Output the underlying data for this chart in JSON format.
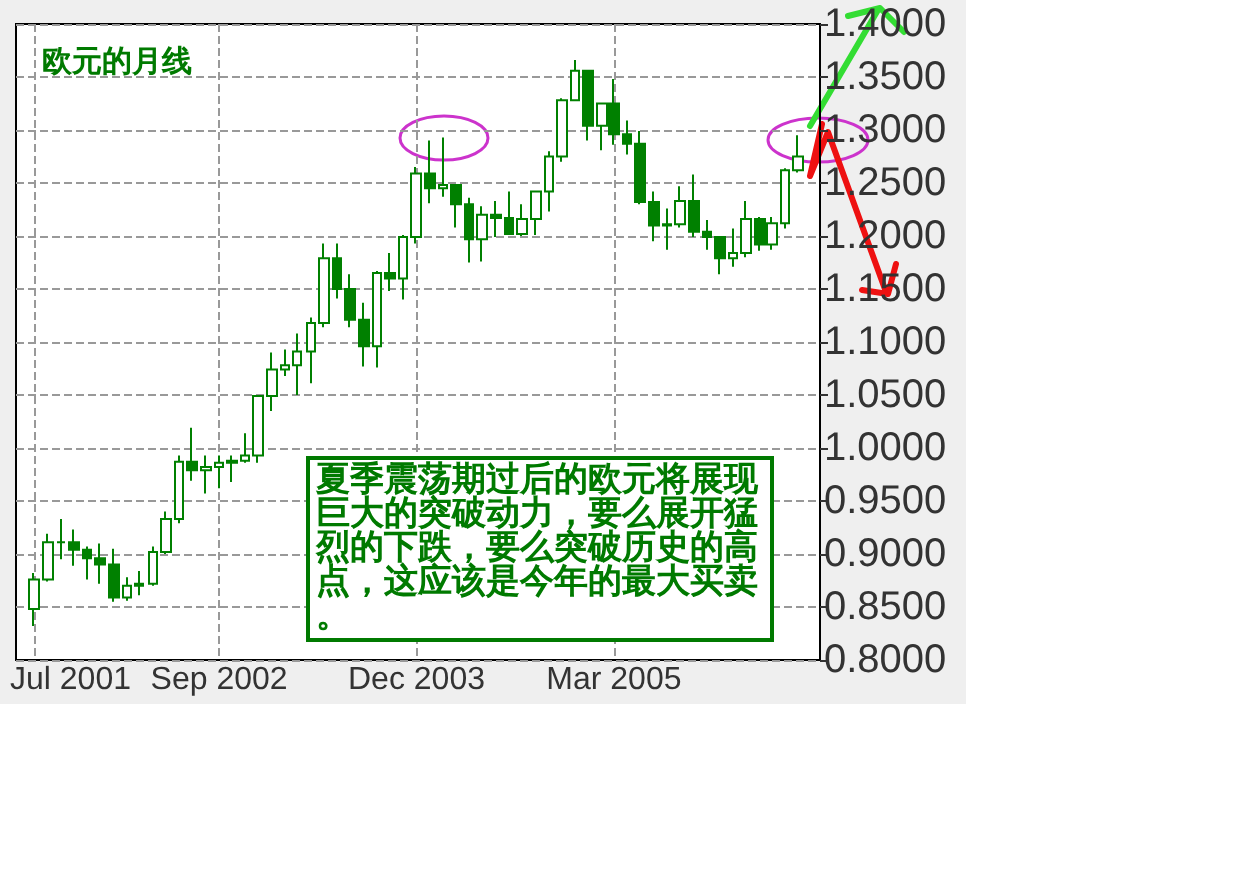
{
  "chart_data": {
    "type": "candlestick",
    "title": "欧元的月线",
    "annotations": [
      "夏季震荡期过后的欧元将展现巨大的突破动力，要么展开猛烈的下跌，要么突破历史的高点，这应该是今年的最大买卖。"
    ],
    "x": [
      "2001-07",
      "2001-08",
      "2001-09",
      "2001-10",
      "2001-11",
      "2001-12",
      "2002-01",
      "2002-02",
      "2002-03",
      "2002-04",
      "2002-05",
      "2002-06",
      "2002-07",
      "2002-08",
      "2002-09",
      "2002-10",
      "2002-11",
      "2002-12",
      "2003-01",
      "2003-02",
      "2003-03",
      "2003-04",
      "2003-05",
      "2003-06",
      "2003-07",
      "2003-08",
      "2003-09",
      "2003-10",
      "2003-11",
      "2003-12",
      "2004-01",
      "2004-02",
      "2004-03",
      "2004-04",
      "2004-05",
      "2004-06",
      "2004-07",
      "2004-08",
      "2004-09",
      "2004-10",
      "2004-11",
      "2004-12",
      "2005-01",
      "2005-02",
      "2005-03",
      "2005-04",
      "2005-05",
      "2005-06",
      "2005-07",
      "2005-08",
      "2005-09",
      "2005-10",
      "2005-11",
      "2005-12",
      "2006-01",
      "2006-02",
      "2006-03",
      "2006-04",
      "2006-05"
    ],
    "ohlc": [
      [
        0.848,
        0.882,
        0.832,
        0.876
      ],
      [
        0.876,
        0.919,
        0.874,
        0.911
      ],
      [
        0.911,
        0.933,
        0.895,
        0.911
      ],
      [
        0.911,
        0.923,
        0.889,
        0.904
      ],
      [
        0.904,
        0.907,
        0.876,
        0.896
      ],
      [
        0.896,
        0.91,
        0.872,
        0.89
      ],
      [
        0.89,
        0.905,
        0.855,
        0.859
      ],
      [
        0.859,
        0.878,
        0.856,
        0.87
      ],
      [
        0.87,
        0.884,
        0.861,
        0.872
      ],
      [
        0.872,
        0.907,
        0.87,
        0.902
      ],
      [
        0.902,
        0.94,
        0.9,
        0.933
      ],
      [
        0.933,
        0.993,
        0.929,
        0.987
      ],
      [
        0.987,
        1.019,
        0.969,
        0.979
      ],
      [
        0.979,
        0.993,
        0.957,
        0.982
      ],
      [
        0.982,
        0.993,
        0.962,
        0.986
      ],
      [
        0.986,
        0.993,
        0.968,
        0.988
      ],
      [
        0.988,
        1.014,
        0.986,
        0.993
      ],
      [
        0.993,
        1.05,
        0.986,
        1.049
      ],
      [
        1.049,
        1.09,
        1.035,
        1.074
      ],
      [
        1.074,
        1.093,
        1.068,
        1.078
      ],
      [
        1.078,
        1.108,
        1.05,
        1.091
      ],
      [
        1.091,
        1.123,
        1.061,
        1.118
      ],
      [
        1.118,
        1.193,
        1.114,
        1.179
      ],
      [
        1.179,
        1.193,
        1.141,
        1.15
      ],
      [
        1.15,
        1.164,
        1.114,
        1.121
      ],
      [
        1.121,
        1.137,
        1.077,
        1.096
      ],
      [
        1.096,
        1.167,
        1.076,
        1.165
      ],
      [
        1.165,
        1.184,
        1.148,
        1.16
      ],
      [
        1.16,
        1.201,
        1.14,
        1.199
      ],
      [
        1.199,
        1.265,
        1.193,
        1.259
      ],
      [
        1.259,
        1.29,
        1.231,
        1.245
      ],
      [
        1.245,
        1.293,
        1.237,
        1.248
      ],
      [
        1.248,
        1.249,
        1.208,
        1.23
      ],
      [
        1.23,
        1.236,
        1.175,
        1.197
      ],
      [
        1.197,
        1.228,
        1.176,
        1.22
      ],
      [
        1.22,
        1.233,
        1.199,
        1.217
      ],
      [
        1.217,
        1.242,
        1.202,
        1.202
      ],
      [
        1.202,
        1.23,
        1.2,
        1.216
      ],
      [
        1.216,
        1.243,
        1.201,
        1.242
      ],
      [
        1.242,
        1.28,
        1.223,
        1.275
      ],
      [
        1.275,
        1.33,
        1.27,
        1.328
      ],
      [
        1.328,
        1.366,
        1.328,
        1.356
      ],
      [
        1.356,
        1.356,
        1.29,
        1.304
      ],
      [
        1.304,
        1.326,
        1.281,
        1.325
      ],
      [
        1.325,
        1.348,
        1.286,
        1.296
      ],
      [
        1.296,
        1.309,
        1.277,
        1.287
      ],
      [
        1.287,
        1.299,
        1.23,
        1.232
      ],
      [
        1.232,
        1.242,
        1.195,
        1.21
      ],
      [
        1.21,
        1.226,
        1.187,
        1.211
      ],
      [
        1.211,
        1.247,
        1.208,
        1.233
      ],
      [
        1.233,
        1.258,
        1.199,
        1.204
      ],
      [
        1.204,
        1.215,
        1.187,
        1.199
      ],
      [
        1.199,
        1.2,
        1.164,
        1.179
      ],
      [
        1.179,
        1.207,
        1.171,
        1.184
      ],
      [
        1.184,
        1.233,
        1.18,
        1.216
      ],
      [
        1.216,
        1.218,
        1.186,
        1.192
      ],
      [
        1.192,
        1.218,
        1.187,
        1.212
      ],
      [
        1.212,
        1.264,
        1.207,
        1.262
      ],
      [
        1.262,
        1.295,
        1.26,
        1.275
      ]
    ],
    "color": "#008000",
    "xlim": [
      "2001-05-20",
      "2006-06-20"
    ],
    "xticks": [
      {
        "value": "2001-07",
        "label": "Jul 2001"
      },
      {
        "value": "2002-09",
        "label": "Sep 2002"
      },
      {
        "value": "2003-12",
        "label": "Dec 2003"
      },
      {
        "value": "2005-03",
        "label": "Mar 2005"
      }
    ],
    "ylim": [
      0.8,
      1.4
    ],
    "yticks": [
      {
        "value": 0.8,
        "label": "0.8000"
      },
      {
        "value": 0.85,
        "label": "0.8500"
      },
      {
        "value": 0.9,
        "label": "0.9000"
      },
      {
        "value": 0.95,
        "label": "0.9500"
      },
      {
        "value": 1.0,
        "label": "1.0000"
      },
      {
        "value": 1.05,
        "label": "1.0500"
      },
      {
        "value": 1.1,
        "label": "1.1000"
      },
      {
        "value": 1.15,
        "label": "1.1500"
      },
      {
        "value": 1.2,
        "label": "1.2000"
      },
      {
        "value": 1.25,
        "label": "1.2500"
      },
      {
        "value": 1.3,
        "label": "1.3000"
      },
      {
        "value": 1.35,
        "label": "1.3500"
      },
      {
        "value": 1.4,
        "label": "1.4000"
      }
    ],
    "grid": true
  }
}
